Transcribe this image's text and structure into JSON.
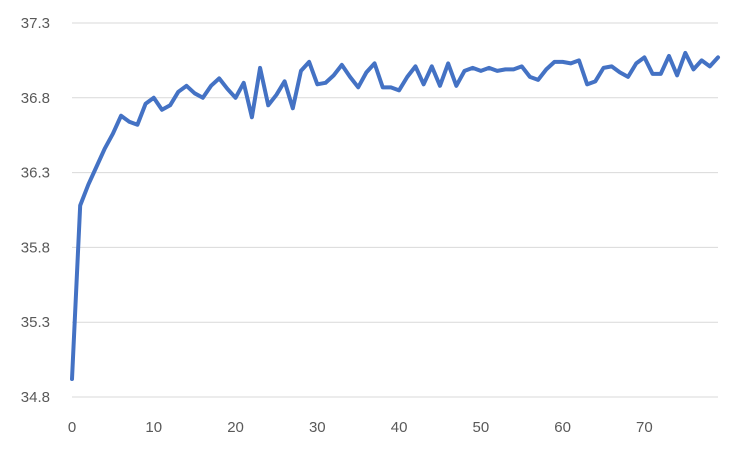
{
  "chart_data": {
    "type": "line",
    "title": "",
    "xlabel": "",
    "ylabel": "",
    "xlim": [
      0,
      79
    ],
    "ylim": [
      34.8,
      37.3
    ],
    "y_ticks": [
      "34.8",
      "35.3",
      "35.8",
      "36.3",
      "36.8",
      "37.3"
    ],
    "x_ticks": [
      "0",
      "10",
      "20",
      "30",
      "40",
      "50",
      "60",
      "70"
    ],
    "grid": "horizontal",
    "legend": "none",
    "series": [
      {
        "color": "#4472c4",
        "x": [
          0,
          1,
          2,
          3,
          4,
          5,
          6,
          7,
          8,
          9,
          10,
          11,
          12,
          13,
          14,
          15,
          16,
          17,
          18,
          19,
          20,
          21,
          22,
          23,
          24,
          25,
          26,
          27,
          28,
          29,
          30,
          31,
          32,
          33,
          34,
          35,
          36,
          37,
          38,
          39,
          40,
          41,
          42,
          43,
          44,
          45,
          46,
          47,
          48,
          49,
          50,
          51,
          52,
          53,
          54,
          55,
          56,
          57,
          58,
          59,
          60,
          61,
          62,
          63,
          64,
          65,
          66,
          67,
          68,
          69,
          70,
          71,
          72,
          73,
          74,
          75,
          76,
          77,
          78,
          79
        ],
        "values": [
          34.92,
          36.08,
          36.22,
          36.34,
          36.46,
          36.56,
          36.68,
          36.64,
          36.62,
          36.76,
          36.8,
          36.72,
          36.75,
          36.84,
          36.88,
          36.83,
          36.8,
          36.88,
          36.93,
          36.86,
          36.8,
          36.9,
          36.67,
          37.0,
          36.75,
          36.82,
          36.91,
          36.73,
          36.98,
          37.04,
          36.89,
          36.9,
          36.95,
          37.02,
          36.94,
          36.87,
          36.97,
          37.03,
          36.87,
          36.87,
          36.85,
          36.94,
          37.01,
          36.89,
          37.01,
          36.88,
          37.03,
          36.88,
          36.98,
          37.0,
          36.98,
          37.0,
          36.98,
          36.99,
          36.99,
          37.01,
          36.94,
          36.92,
          36.99,
          37.04,
          37.04,
          37.03,
          37.05,
          36.89,
          36.91,
          37.0,
          37.01,
          36.97,
          36.94,
          37.03,
          37.07,
          36.96,
          36.96,
          37.08,
          36.95,
          37.1,
          36.99,
          37.05,
          37.01,
          37.07
        ]
      }
    ]
  }
}
